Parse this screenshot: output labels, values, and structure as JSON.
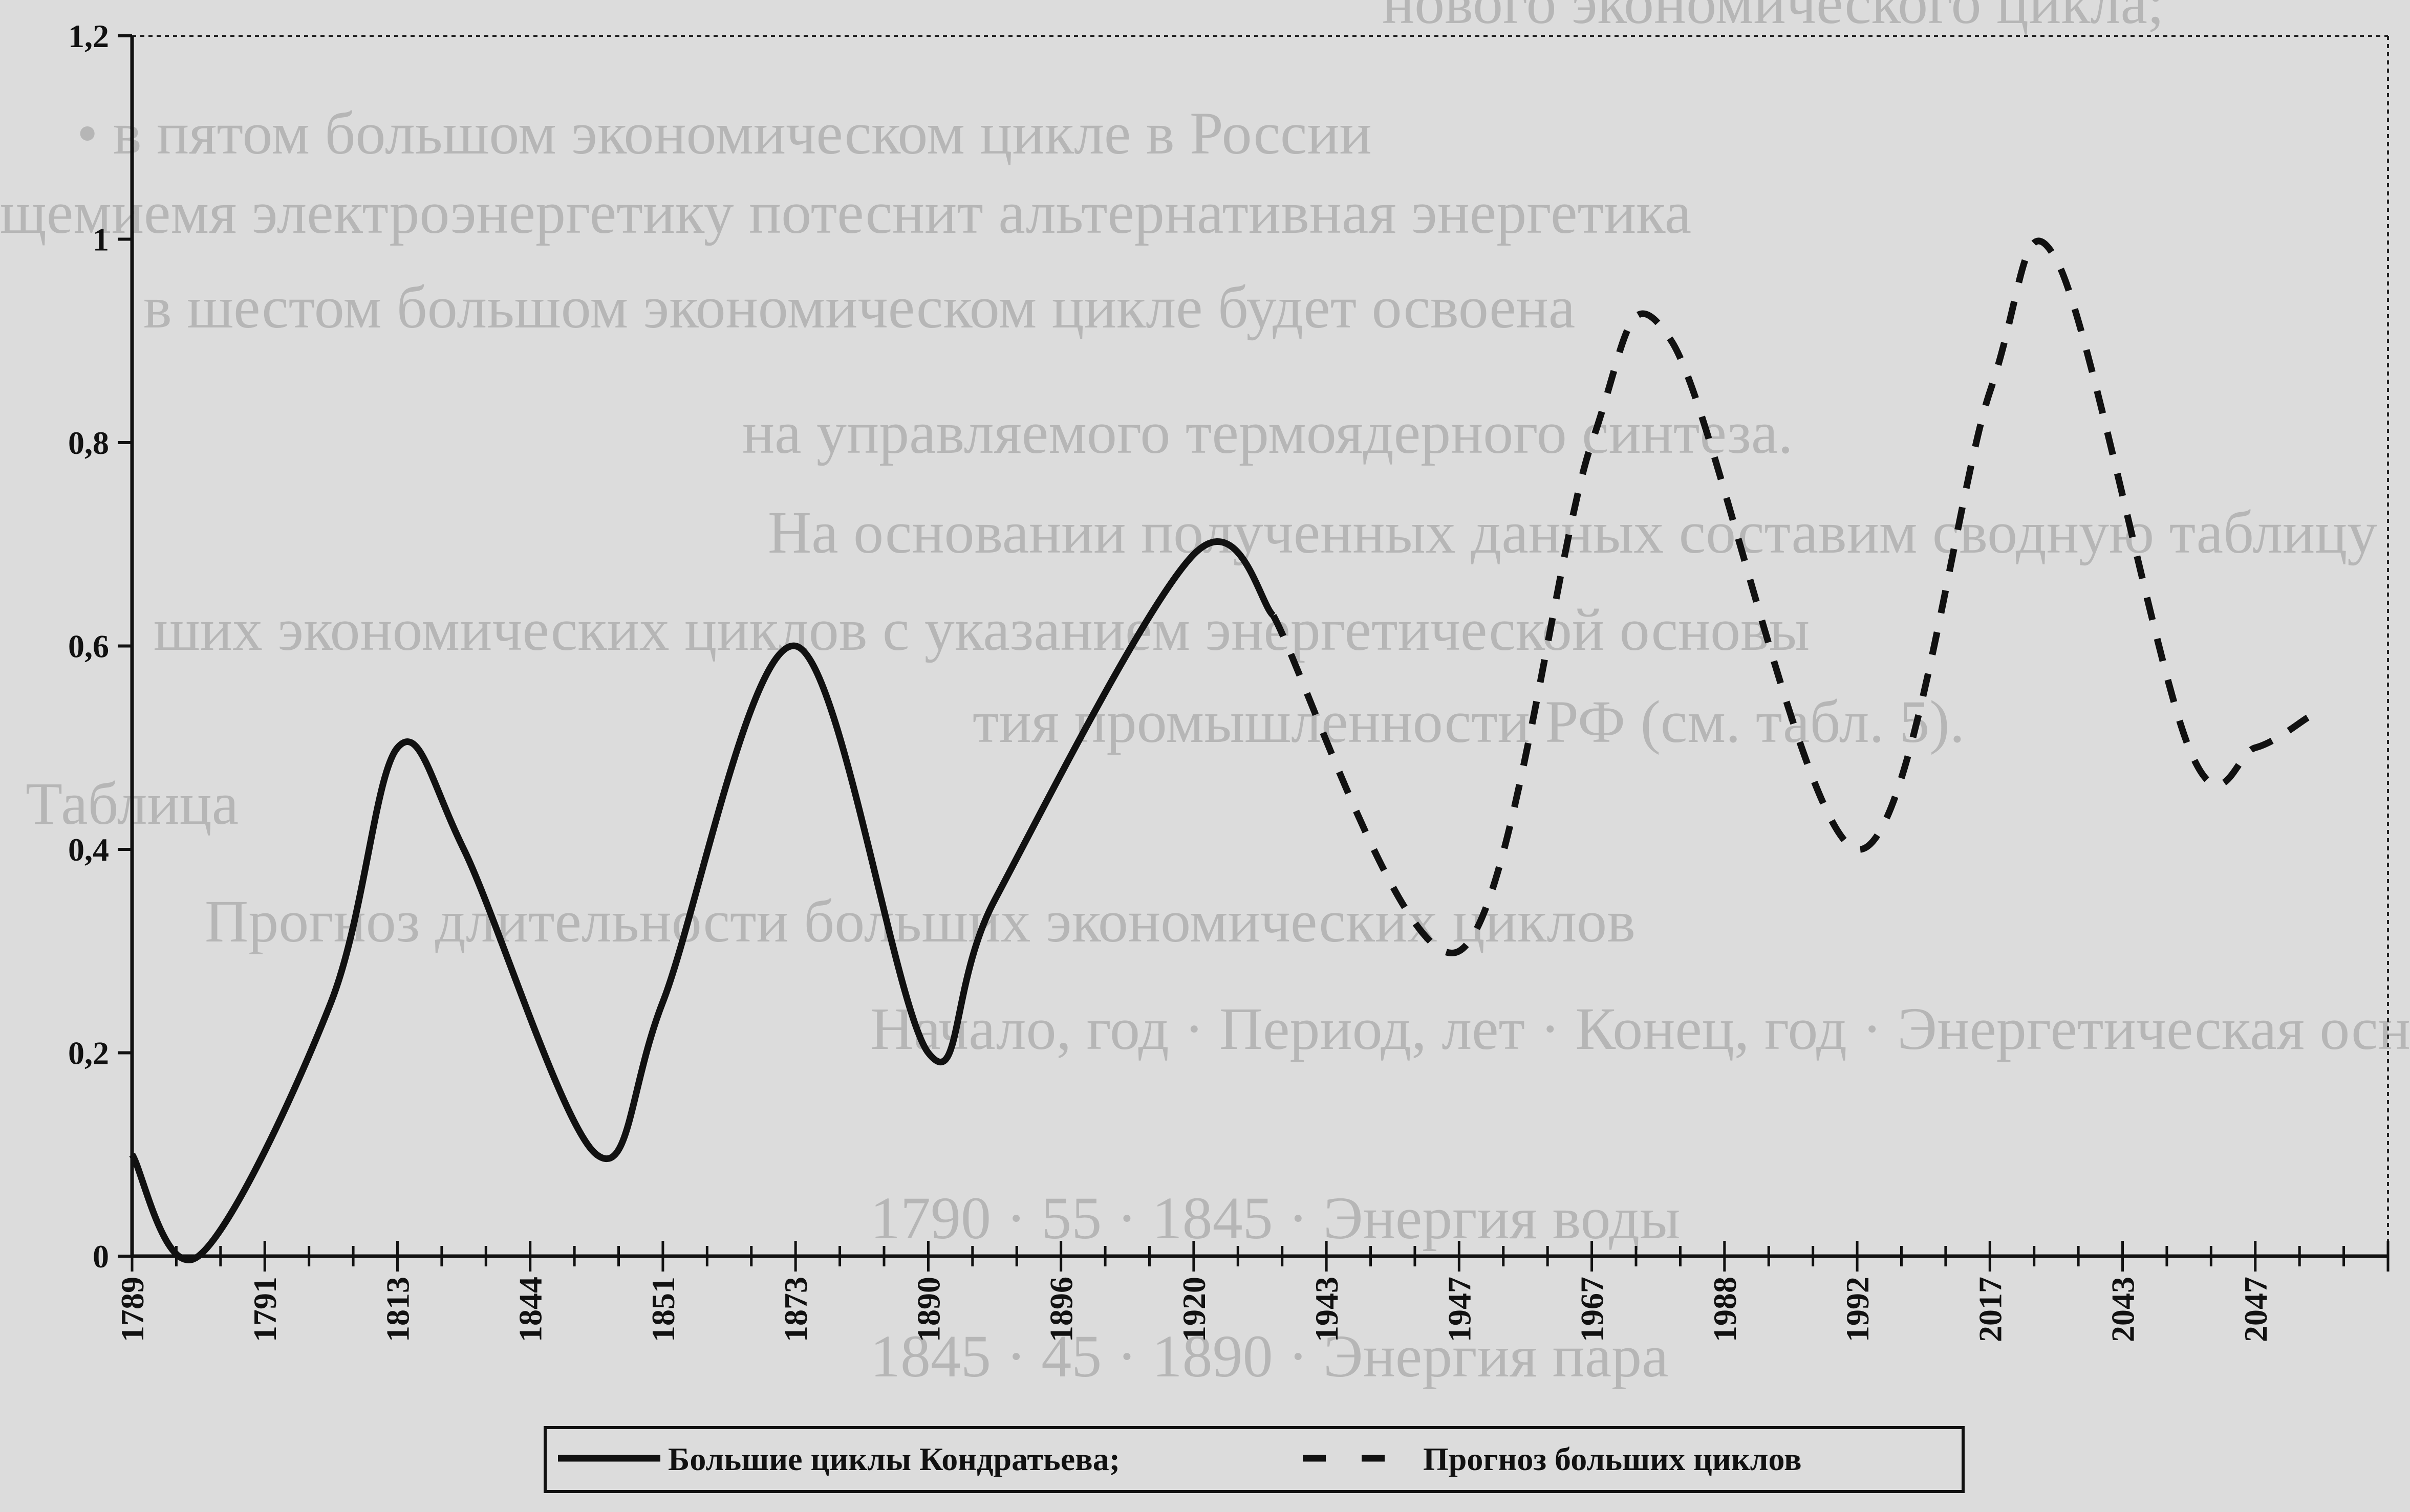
{
  "chart_data": {
    "type": "line",
    "x_labels": [
      "1789",
      "1791",
      "1813",
      "1844",
      "1851",
      "1873",
      "1890",
      "1896",
      "1920",
      "1943",
      "1947",
      "1967",
      "1988",
      "1992",
      "2017",
      "2043",
      "2047"
    ],
    "ylim": [
      0,
      1.2
    ],
    "y_ticks": [
      0,
      0.2,
      0.4,
      0.6,
      0.8,
      1,
      1.2
    ],
    "y_tick_labels": [
      "0",
      "0,2",
      "0,4",
      "0,6",
      "0,8",
      "1",
      "1,2"
    ],
    "grid": false,
    "legend_position": "bottom-center",
    "series": [
      {
        "name": "Большие циклы Кондратьева;",
        "style": "solid",
        "color": "#111111",
        "points": [
          [
            0,
            0.1
          ],
          [
            0.5,
            0
          ],
          [
            1.5,
            0.25
          ],
          [
            2,
            0.5
          ],
          [
            2.5,
            0.4
          ],
          [
            3.5,
            0.1
          ],
          [
            4,
            0.25
          ],
          [
            5,
            0.6
          ],
          [
            6,
            0.2
          ],
          [
            6.5,
            0.35
          ],
          [
            8,
            0.69
          ],
          [
            8.6,
            0.63
          ]
        ]
      },
      {
        "name": "Прогноз больших циклов",
        "style": "dashed",
        "color": "#111111",
        "points": [
          [
            8.6,
            0.63
          ],
          [
            10,
            0.3
          ],
          [
            11,
            0.8
          ],
          [
            11.6,
            0.9
          ],
          [
            13,
            0.4
          ],
          [
            14,
            0.85
          ],
          [
            14.5,
            0.98
          ],
          [
            15.5,
            0.5
          ],
          [
            16,
            0.5
          ],
          [
            16.4,
            0.53
          ]
        ]
      }
    ]
  },
  "background_text": [
    "нового экономического цикла;",
    "•  в пятом большом экономическом цикле в России",
    "щемиемя электроэнергетику потеснит альтернативная энергетика",
    "в шестом большом экономическом цикле будет освоена",
    "на управляемого термоядерного синтеза.",
    "На основании полученных данных составим сводную таблицу",
    "ших экономических циклов с указанием энергетической основы",
    "тия промышленности РФ (см. табл. 5).",
    "Таблица",
    "Прогноз длительности больших экономических циклов",
    "Начало, год · Период, лет · Конец, год · Энергетическая основа развития",
    "1790 · 55 · 1845 · Энергия воды",
    "1845 · 45 · 1890 · Энергия пара"
  ]
}
